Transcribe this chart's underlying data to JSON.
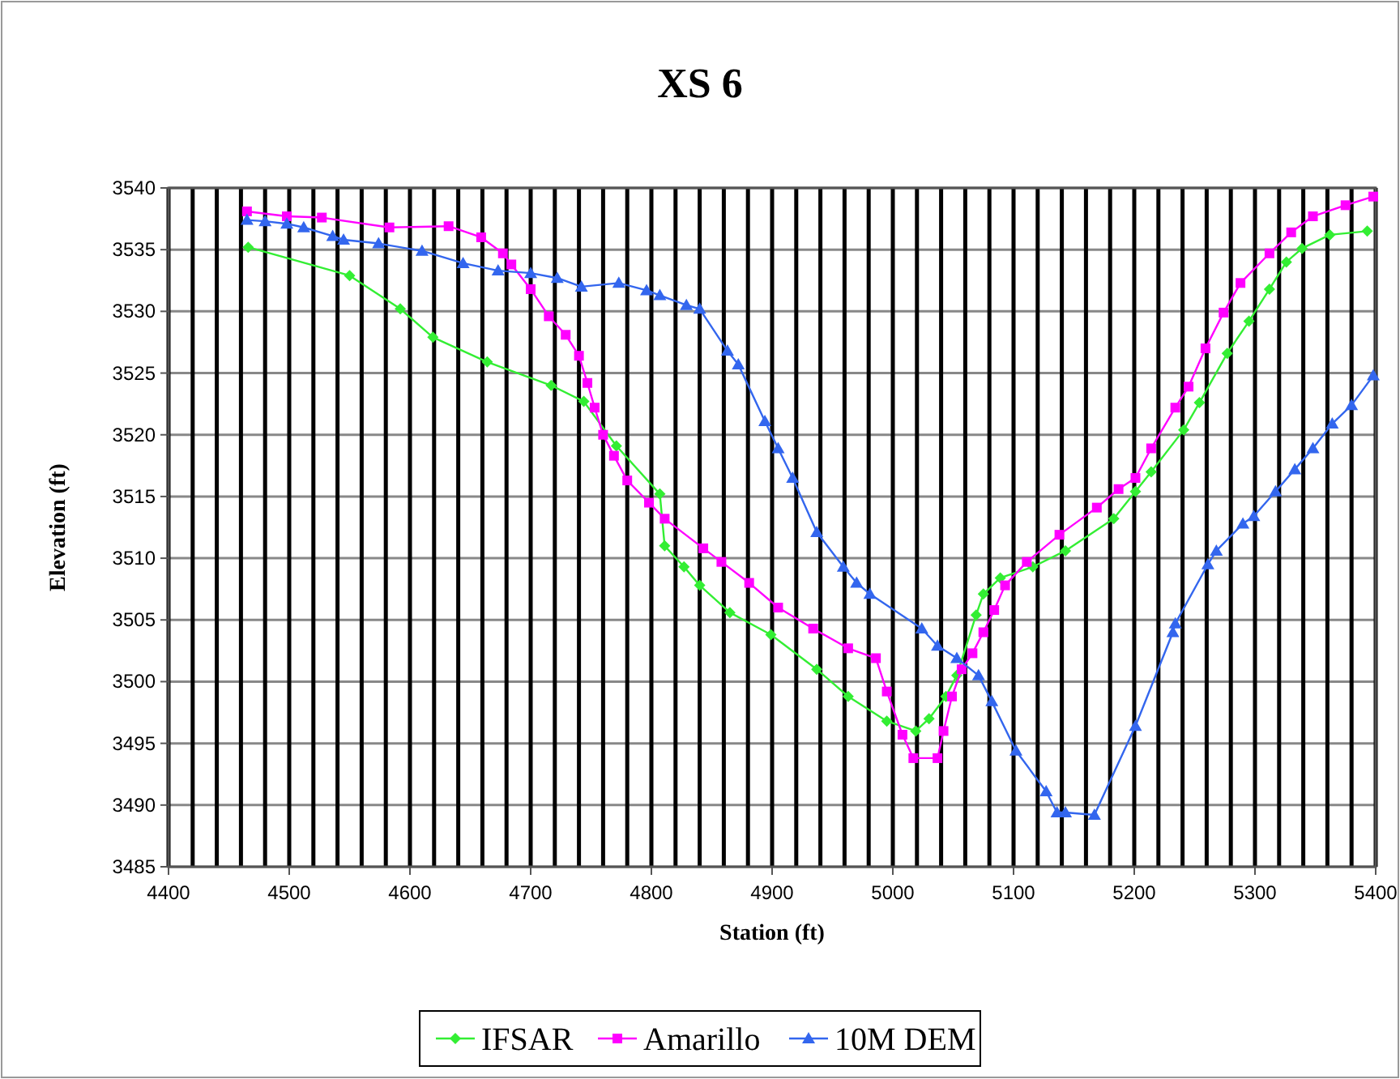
{
  "chart_data": {
    "type": "line",
    "title": "XS 6",
    "xlabel": "Station (ft)",
    "ylabel": "Elevation (ft)",
    "xlim": [
      4400,
      5400
    ],
    "xticks": [
      4400,
      {
        "value": 4420,
        "label": null
      },
      {
        "value": 4440,
        "label": null
      },
      {
        "value": 4460,
        "label": null
      },
      {
        "value": 4480,
        "label": null
      },
      4500,
      {
        "value": 4520,
        "label": null
      },
      {
        "value": 4540,
        "label": null
      },
      {
        "value": 4560,
        "label": null
      },
      {
        "value": 4580,
        "label": null
      },
      4600,
      {
        "value": 4620,
        "label": null
      },
      {
        "value": 4640,
        "label": null
      },
      {
        "value": 4660,
        "label": null
      },
      {
        "value": 4680,
        "label": null
      },
      4700,
      {
        "value": 4720,
        "label": null
      },
      {
        "value": 4740,
        "label": null
      },
      {
        "value": 4760,
        "label": null
      },
      {
        "value": 4780,
        "label": null
      },
      4800,
      {
        "value": 4820,
        "label": null
      },
      {
        "value": 4840,
        "label": null
      },
      {
        "value": 4860,
        "label": null
      },
      {
        "value": 4880,
        "label": null
      },
      4900,
      {
        "value": 4920,
        "label": null
      },
      {
        "value": 4940,
        "label": null
      },
      {
        "value": 4960,
        "label": null
      },
      {
        "value": 4980,
        "label": null
      },
      5000,
      {
        "value": 5020,
        "label": null
      },
      {
        "value": 5040,
        "label": null
      },
      {
        "value": 5060,
        "label": null
      },
      {
        "value": 5080,
        "label": null
      },
      5100,
      {
        "value": 5120,
        "label": null
      },
      {
        "value": 5140,
        "label": null
      },
      {
        "value": 5160,
        "label": null
      },
      {
        "value": 5180,
        "label": null
      },
      5200,
      {
        "value": 5220,
        "label": null
      },
      {
        "value": 5240,
        "label": null
      },
      {
        "value": 5260,
        "label": null
      },
      {
        "value": 5280,
        "label": null
      },
      5300,
      {
        "value": 5320,
        "label": null
      },
      {
        "value": 5340,
        "label": null
      },
      {
        "value": 5360,
        "label": null
      },
      {
        "value": 5380,
        "label": null
      },
      5400
    ],
    "ylim": [
      3485,
      3540
    ],
    "yticks": [
      3485,
      3490,
      3495,
      3500,
      3505,
      3510,
      3515,
      3520,
      3525,
      3530,
      3535,
      3540
    ],
    "grid": true,
    "legend": "bottom",
    "line_style": "solid",
    "series": [
      {
        "name": "IFSAR",
        "color": "#33ee33",
        "marker": "diamond",
        "x": [
          4466,
          4550,
          4592,
          4619,
          4664,
          4717,
          4744,
          4771,
          4807,
          4811,
          4827,
          4840,
          4865,
          4899,
          4937,
          4963,
          4995,
          5019,
          5030,
          5044,
          5053,
          5069,
          5075,
          5089,
          5116,
          5143,
          5183,
          5201,
          5214,
          5241,
          5254,
          5277,
          5295,
          5312,
          5326,
          5339,
          5362,
          5393
        ],
        "values": [
          3535.2,
          3532.9,
          3530.2,
          3527.9,
          3525.9,
          3524,
          3522.7,
          3519.1,
          3515.2,
          3511,
          3509.3,
          3507.8,
          3505.6,
          3503.8,
          3501,
          3498.8,
          3496.8,
          3496,
          3497,
          3498.8,
          3500.5,
          3505.4,
          3507.1,
          3508.4,
          3509.3,
          3510.6,
          3513.2,
          3515.4,
          3517,
          3520.4,
          3522.6,
          3526.6,
          3529.2,
          3531.8,
          3534,
          3535.1,
          3536.2,
          3536.5
        ]
      },
      {
        "name": "Amarillo",
        "color": "#ff00ff",
        "marker": "square",
        "x": [
          4465,
          4498,
          4527,
          4583,
          4632,
          4659,
          4677,
          4684,
          4700,
          4715,
          4729,
          4740,
          4747,
          4753,
          4760,
          4769,
          4780,
          4798,
          4811,
          4843,
          4858,
          4881,
          4905,
          4934,
          4963,
          4986,
          4995,
          5008,
          5017,
          5037,
          5042,
          5049,
          5057,
          5066,
          5075,
          5084,
          5093,
          5111,
          5138,
          5169,
          5187,
          5201,
          5214,
          5234,
          5245,
          5259,
          5274,
          5288,
          5312,
          5330,
          5348,
          5375,
          5398
        ],
        "values": [
          3538.1,
          3537.7,
          3537.6,
          3536.8,
          3536.9,
          3536,
          3534.7,
          3533.8,
          3531.8,
          3529.6,
          3528.1,
          3526.4,
          3524.2,
          3522.2,
          3520,
          3518.3,
          3516.3,
          3514.5,
          3513.2,
          3510.8,
          3509.7,
          3508,
          3506,
          3504.3,
          3502.7,
          3501.9,
          3499.2,
          3495.7,
          3493.8,
          3493.8,
          3496,
          3498.8,
          3501,
          3502.3,
          3504,
          3505.8,
          3507.8,
          3509.7,
          3511.9,
          3514.1,
          3515.6,
          3516.5,
          3518.9,
          3522.2,
          3523.9,
          3527,
          3529.9,
          3532.3,
          3534.7,
          3536.4,
          3537.7,
          3538.6,
          3539.3
        ]
      },
      {
        "name": "10M DEM",
        "color": "#3366ee",
        "marker": "triangle",
        "x": [
          4465,
          4480,
          4498,
          4512,
          4536,
          4545,
          4574,
          4610,
          4644,
          4673,
          4700,
          4722,
          4742,
          4773,
          4796,
          4807,
          4829,
          4840,
          4863,
          4872,
          4894,
          4905,
          4917,
          4937,
          4959,
          4970,
          4981,
          5024,
          5037,
          5053,
          5071,
          5082,
          5102,
          5127,
          5136,
          5143,
          5167,
          5201,
          5232,
          5234,
          5261,
          5268,
          5290,
          5299,
          5317,
          5333,
          5348,
          5364,
          5380,
          5398
        ],
        "values": [
          3537.4,
          3537.3,
          3537.1,
          3536.8,
          3536.1,
          3535.8,
          3535.5,
          3534.9,
          3533.9,
          3533.3,
          3533.1,
          3532.7,
          3532,
          3532.3,
          3531.7,
          3531.3,
          3530.5,
          3530.2,
          3526.8,
          3525.7,
          3521.1,
          3518.9,
          3516.5,
          3512.1,
          3509.3,
          3508,
          3507.1,
          3504.3,
          3502.9,
          3501.9,
          3500.5,
          3498.4,
          3494.4,
          3491.1,
          3489.4,
          3489.4,
          3489.2,
          3496.4,
          3504,
          3504.7,
          3509.5,
          3510.6,
          3512.8,
          3513.4,
          3515.4,
          3517.2,
          3518.9,
          3520.9,
          3522.4,
          3524.8
        ]
      }
    ]
  }
}
